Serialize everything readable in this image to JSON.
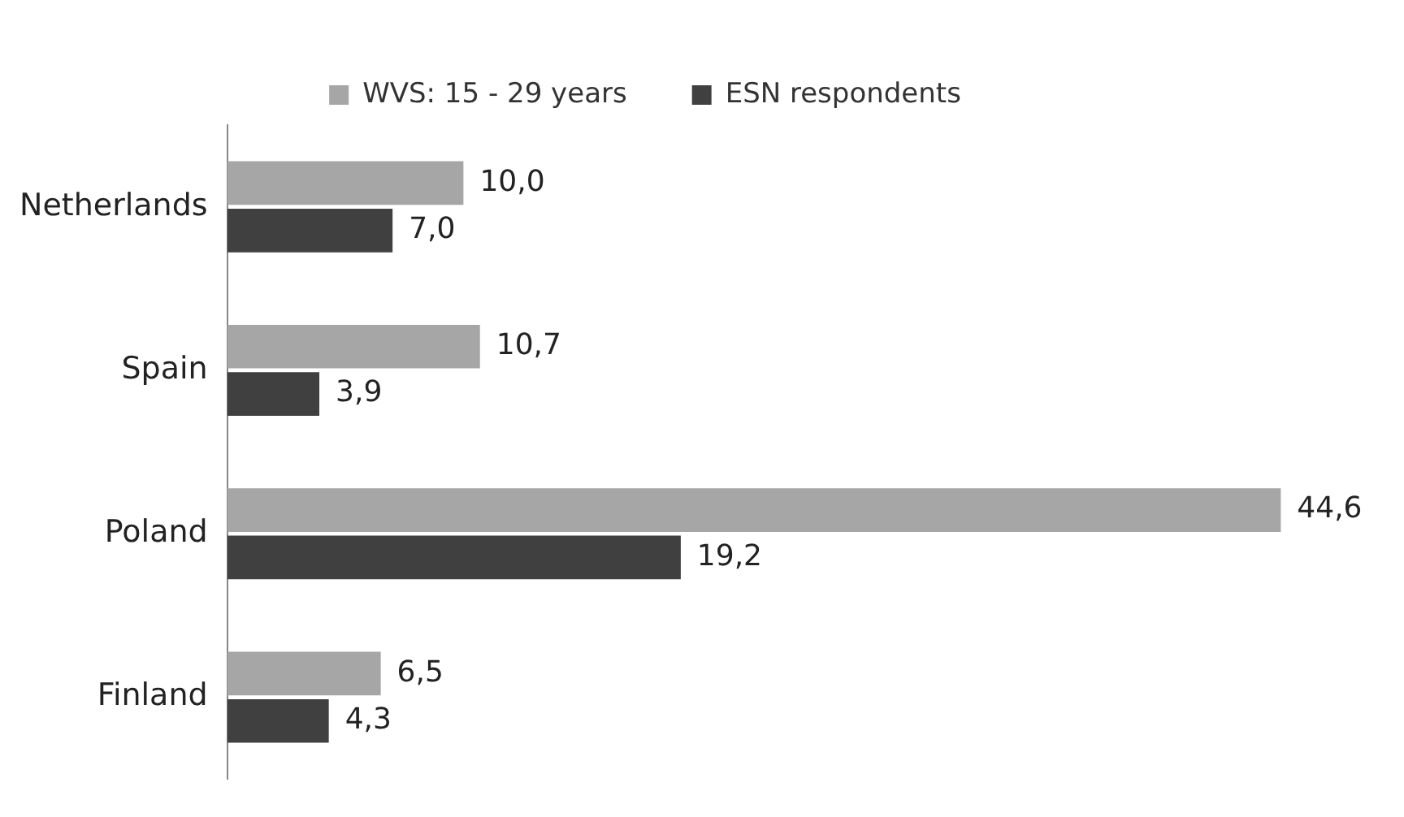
{
  "chart_data": {
    "type": "bar",
    "orientation": "horizontal",
    "categories": [
      "Netherlands",
      "Spain",
      "Poland",
      "Finland"
    ],
    "series": [
      {
        "name": "WVS: 15 - 29 years",
        "color": "#a6a6a6",
        "values": [
          10.0,
          10.7,
          44.6,
          6.5
        ],
        "value_labels": [
          "10,0",
          "10,7",
          "44,6",
          "6,5"
        ]
      },
      {
        "name": "ESN respondents",
        "color": "#404040",
        "values": [
          7.0,
          3.9,
          19.2,
          4.3
        ],
        "value_labels": [
          "7,0",
          "3,9",
          "19,2",
          "4,3"
        ]
      }
    ],
    "legend": "top",
    "grid": false
  }
}
